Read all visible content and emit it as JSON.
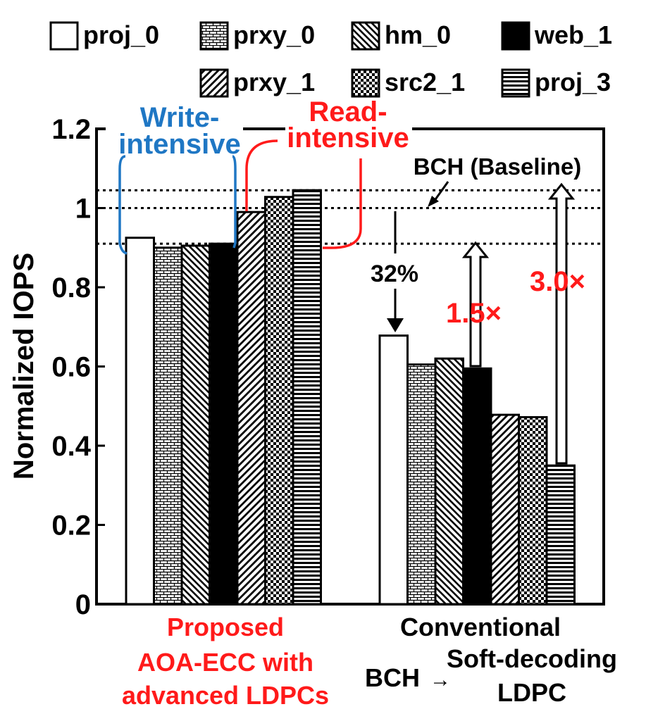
{
  "colors": {
    "annotation_red": "#ff1a1a",
    "annotation_blue": "#1f77c4",
    "ink": "#000000",
    "paper": "#ffffff"
  },
  "chart_data": {
    "type": "bar",
    "title": "",
    "ylabel": "Normalized IOPS",
    "xlabel": "",
    "ylim": [
      0,
      1.2
    ],
    "yticks": [
      "0",
      "0.2",
      "0.4",
      "0.6",
      "0.8",
      "1",
      "1.2"
    ],
    "legend_position": "top",
    "categories": [
      "Proposed AOA-ECC with advanced LDPCs",
      "Conventional BCH → Soft-decoding LDPC"
    ],
    "category_labels": [
      {
        "lines": [
          "Proposed",
          "AOA-ECC with",
          "advanced LDPCs"
        ]
      },
      {
        "lines": [
          "Conventional",
          "Soft-decoding",
          "LDPC"
        ],
        "prefix": "BCH",
        "arrow": "→"
      }
    ],
    "series": [
      {
        "name": "proj_0",
        "pattern": "blank",
        "values": [
          0.925,
          0.678
        ]
      },
      {
        "name": "prxy_0",
        "pattern": "brick",
        "values": [
          0.9,
          0.605
        ]
      },
      {
        "name": "hm_0",
        "pattern": "diag-back",
        "values": [
          0.905,
          0.62
        ]
      },
      {
        "name": "web_1",
        "pattern": "solid",
        "values": [
          0.91,
          0.595
        ]
      },
      {
        "name": "prxy_1",
        "pattern": "diag-fwd",
        "values": [
          0.99,
          0.478
        ]
      },
      {
        "name": "src2_1",
        "pattern": "checker",
        "values": [
          1.028,
          0.472
        ]
      },
      {
        "name": "proj_3",
        "pattern": "horiz",
        "values": [
          1.045,
          0.35
        ]
      }
    ],
    "reference_lines": [
      1.045,
      1.0,
      0.91
    ],
    "annotations": {
      "write_intensive": "Write-\nintensive",
      "read_intensive": "Read-\nintensive",
      "baseline": "BCH (Baseline)",
      "drop": "32%",
      "gain_1": "1.5×",
      "gain_2": "3.0×"
    }
  }
}
